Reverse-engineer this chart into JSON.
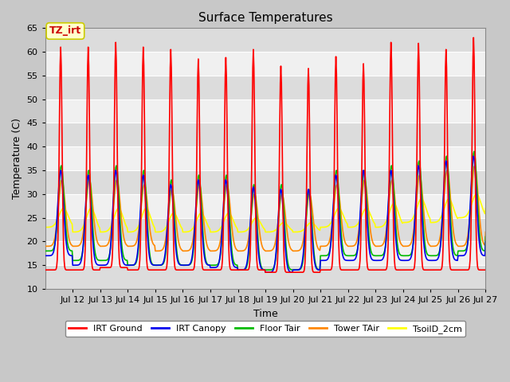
{
  "title": "Surface Temperatures",
  "ylabel": "Temperature (C)",
  "xlabel": "Time",
  "xlim_days": [
    11,
    27
  ],
  "ylim": [
    10,
    65
  ],
  "yticks": [
    10,
    15,
    20,
    25,
    30,
    35,
    40,
    45,
    50,
    55,
    60,
    65
  ],
  "xtick_days": [
    12,
    13,
    14,
    15,
    16,
    17,
    18,
    19,
    20,
    21,
    22,
    23,
    24,
    25,
    26,
    27
  ],
  "xtick_labels": [
    "Jul 12",
    "Jul 13",
    "Jul 14",
    "Jul 15",
    "Jul 16",
    "Jul 17",
    "Jul 18",
    "Jul 19",
    "Jul 20",
    "Jul 21",
    "Jul 22",
    "Jul 23",
    "Jul 24",
    "Jul 25",
    "Jul 26",
    "Jul 27"
  ],
  "annotation_text": "TZ_irt",
  "annotation_box_color": "#FFFFCC",
  "annotation_box_edge": "#CCCC00",
  "annotation_text_color": "#CC0000",
  "legend_colors": [
    "#FF0000",
    "#0000EE",
    "#00BB00",
    "#FF8800",
    "#FFFF00"
  ],
  "legend_labels": [
    "IRT Ground",
    "IRT Canopy",
    "Floor Tair",
    "Tower TAir",
    "TsoilD_2cm"
  ],
  "fig_bg_color": "#C8C8C8",
  "plot_bg_light": "#F0F0F0",
  "plot_bg_dark": "#DCDCDC",
  "grid_color": "#FFFFFF",
  "title_fontsize": 11,
  "axis_label_fontsize": 9,
  "tick_fontsize": 8,
  "linewidth": 1.2
}
